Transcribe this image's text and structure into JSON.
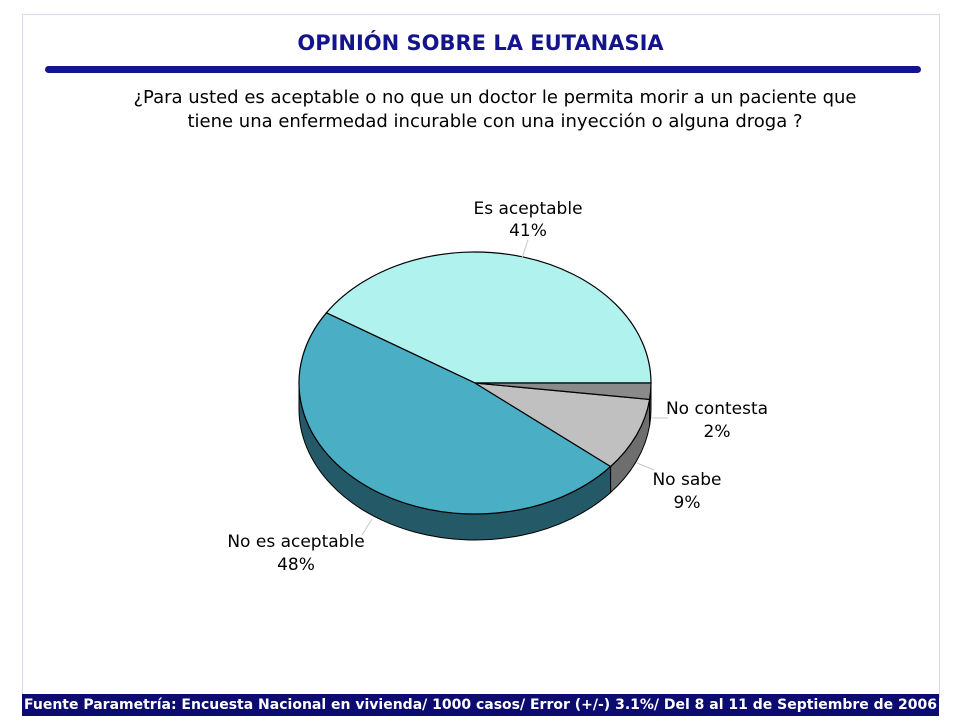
{
  "header": {
    "title": "OPINIÓN SOBRE LA EUTANASIA",
    "question_line1": "¿Para usted es aceptable o no que un doctor le permita morir a un paciente que",
    "question_line2": "tiene una enfermedad incurable con una inyección o alguna droga ?"
  },
  "chart_data": {
    "type": "pie",
    "title": "OPINIÓN SOBRE LA EUTANASIA",
    "slices": [
      {
        "label": "Es aceptable",
        "value": 41,
        "value_label": "41%",
        "color": "#b0f2ee",
        "side": "#6fb8b5"
      },
      {
        "label": "No es aceptable",
        "value": 48,
        "value_label": "48%",
        "color": "#4aafc4",
        "side": "#245a68"
      },
      {
        "label": "No sabe",
        "value": 9,
        "value_label": "9%",
        "color": "#c0c0c0",
        "side": "#6e6e6e"
      },
      {
        "label": "No contesta",
        "value": 2,
        "value_label": "2%",
        "color": "#8a8a8a",
        "side": "#5a5a5a"
      }
    ]
  },
  "footer": {
    "source": "Fuente Parametría: Encuesta Nacional en vivienda/ 1000 casos/ Error (+/-) 3.1%/ Del 8 al 11 de Septiembre de 2006"
  }
}
